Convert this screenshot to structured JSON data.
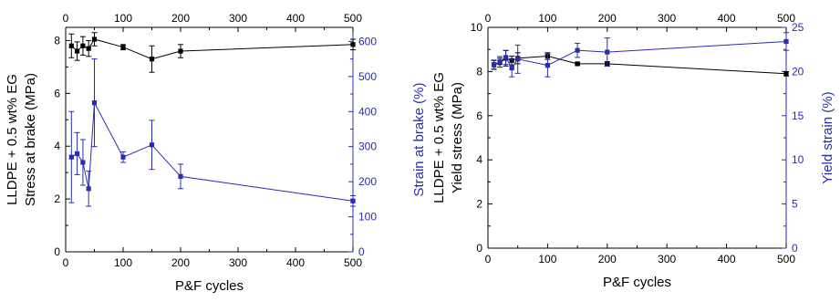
{
  "chart_data": [
    {
      "type": "line",
      "xlabel": "P&F cycles",
      "ylabel_lines": [
        "LLDPE + 0.5 wt% EG",
        "Stress at brake (MPa)"
      ],
      "y2label": "Strain at brake (%)",
      "xlim": [
        0,
        500
      ],
      "ylim": [
        0,
        8.5
      ],
      "y2lim": [
        0,
        640
      ],
      "x_ticks": [
        0,
        100,
        200,
        300,
        400,
        500
      ],
      "y_ticks": [
        0,
        2,
        4,
        6,
        8
      ],
      "y2_ticks": [
        0,
        100,
        200,
        300,
        400,
        500,
        600
      ],
      "colors": {
        "primary": "#000000",
        "secondary": "#2b2bb0"
      },
      "series": [
        {
          "axis": "left",
          "color": "#000000",
          "x": [
            10,
            20,
            30,
            40,
            50,
            100,
            150,
            200,
            500
          ],
          "y": [
            7.8,
            7.6,
            7.8,
            7.7,
            8.05,
            7.75,
            7.3,
            7.6,
            7.85
          ],
          "err": [
            0.45,
            0.35,
            0.35,
            0.3,
            0.25,
            0.1,
            0.5,
            0.25,
            0.2
          ]
        },
        {
          "axis": "right",
          "color": "#2b2bb0",
          "x": [
            10,
            20,
            30,
            40,
            50,
            100,
            150,
            200,
            500
          ],
          "y": [
            270,
            280,
            255,
            180,
            425,
            270,
            305,
            215,
            145
          ],
          "err": [
            130,
            60,
            65,
            50,
            125,
            15,
            70,
            35,
            15
          ]
        }
      ]
    },
    {
      "type": "line",
      "xlabel": "P&F cycles",
      "ylabel_lines": [
        "LLDPE + 0.5 wt% EG",
        "Yield stress (MPa)"
      ],
      "y2label": "Yield strain (%)",
      "xlim": [
        0,
        500
      ],
      "ylim": [
        0,
        10
      ],
      "y2lim": [
        0,
        25
      ],
      "x_ticks": [
        0,
        100,
        200,
        300,
        400,
        500
      ],
      "y_ticks": [
        0,
        2,
        4,
        6,
        8,
        10
      ],
      "y2_ticks": [
        0,
        5,
        10,
        15,
        20,
        25
      ],
      "colors": {
        "primary": "#000000",
        "secondary": "#2b2bb0"
      },
      "series": [
        {
          "axis": "left",
          "color": "#000000",
          "x": [
            10,
            20,
            30,
            40,
            50,
            100,
            150,
            200,
            500
          ],
          "y": [
            8.3,
            8.4,
            8.6,
            8.5,
            8.6,
            8.7,
            8.35,
            8.35,
            7.9
          ],
          "err": [
            0.2,
            0.2,
            0.35,
            0.2,
            0.25,
            0.15,
            0.05,
            0.1,
            0.1
          ]
        },
        {
          "axis": "right",
          "color": "#2b2bb0",
          "x": [
            10,
            20,
            30,
            40,
            50,
            100,
            150,
            200,
            500
          ],
          "y": [
            20.8,
            21.1,
            21.6,
            20.4,
            21.4,
            20.7,
            22.4,
            22.2,
            23.4
          ],
          "err": [
            0.5,
            0.6,
            0.8,
            1.0,
            1.6,
            1.3,
            0.8,
            1.6,
            1.0
          ]
        }
      ]
    }
  ]
}
